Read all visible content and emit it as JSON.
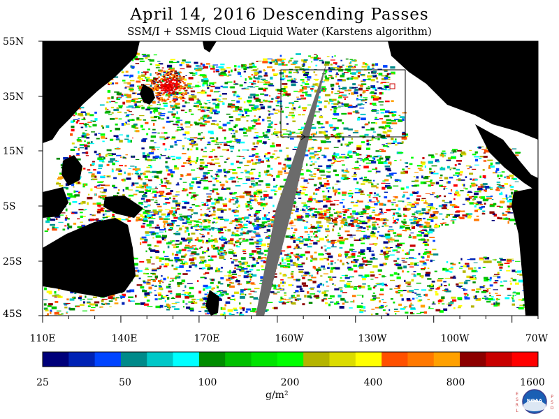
{
  "title": "April 14, 2016  Descending Passes",
  "subtitle": "SSM/I + SSMIS Cloud Liquid Water (Karstens algorithm)",
  "lat_labels": [
    "55N",
    "35N",
    "15N",
    "5S",
    "25S",
    "45S"
  ],
  "lon_labels": [
    "110E",
    "140E",
    "170E",
    "160W",
    "130W",
    "100W",
    "70W"
  ],
  "colorbar": {
    "colors": [
      "#00007a",
      "#0022b4",
      "#0044ff",
      "#008a8a",
      "#00c8c8",
      "#00ffff",
      "#008c00",
      "#00c000",
      "#00e400",
      "#00ff00",
      "#b4b400",
      "#dcdc00",
      "#ffff00",
      "#ff5000",
      "#ff7800",
      "#ffa000",
      "#8c0000",
      "#c80000",
      "#ff0000"
    ],
    "tick_labels": [
      "25",
      "50",
      "100",
      "200",
      "400",
      "800",
      "1600"
    ],
    "units": "g/m²"
  },
  "logo": {
    "text": "NOAA",
    "left_letters": "ESRL",
    "right_letters": "PSD"
  },
  "colors": {
    "land": "#000000",
    "no_data": "#6b6b6b",
    "clear": "#ffffff"
  }
}
